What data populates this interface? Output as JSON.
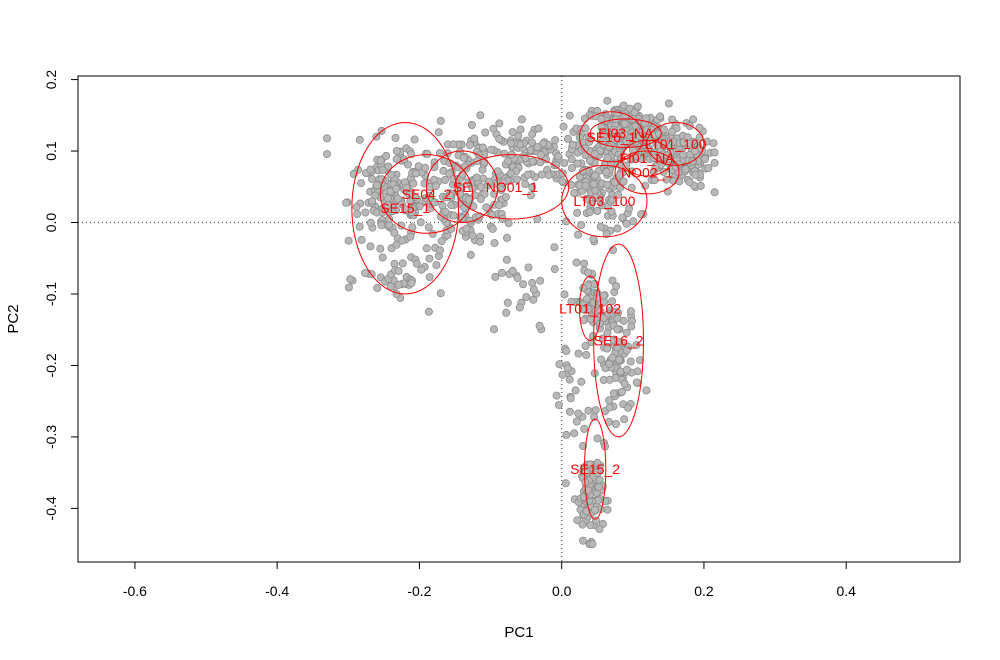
{
  "colors": {
    "point_fill": "#b8b8b8",
    "point_stroke": "#8c8c8c",
    "ellipse": "#ff0000",
    "label": "#ff0000",
    "frame": "#000000",
    "refline": "#555555"
  },
  "chart_data": {
    "type": "scatter",
    "title": "",
    "xlabel": "PC1",
    "ylabel": "PC2",
    "xlim": [
      -0.68,
      0.56
    ],
    "ylim": [
      -0.475,
      0.205
    ],
    "xticks": [
      -0.6,
      -0.4,
      -0.2,
      0.0,
      0.2,
      0.4
    ],
    "xtick_labels": [
      "-0.6",
      "-0.4",
      "-0.2",
      "0.0",
      "0.2",
      "0.4"
    ],
    "yticks": [
      -0.4,
      -0.3,
      -0.2,
      -0.1,
      0.0,
      0.1,
      0.2
    ],
    "ytick_labels": [
      "-0.4",
      "-0.3",
      "-0.2",
      "-0.1",
      "0.0",
      "0.1",
      "0.2"
    ],
    "grid": false,
    "reference_lines": {
      "x": 0,
      "y": 0,
      "style": "dotted"
    },
    "point_clusters": [
      {
        "cx": -0.05,
        "cy": 0.09,
        "sx": 0.17,
        "sy": 0.04,
        "n": 260
      },
      {
        "cx": -0.24,
        "cy": 0.03,
        "sx": 0.05,
        "sy": 0.05,
        "n": 140
      },
      {
        "cx": -0.13,
        "cy": 0.02,
        "sx": 0.06,
        "sy": 0.045,
        "n": 120
      },
      {
        "cx": 0.09,
        "cy": 0.13,
        "sx": 0.05,
        "sy": 0.03,
        "n": 210
      },
      {
        "cx": 0.16,
        "cy": 0.09,
        "sx": 0.04,
        "sy": 0.035,
        "n": 150
      },
      {
        "cx": 0.06,
        "cy": 0.04,
        "sx": 0.04,
        "sy": 0.05,
        "n": 90
      },
      {
        "cx": 0.04,
        "cy": -0.11,
        "sx": 0.02,
        "sy": 0.04,
        "n": 60
      },
      {
        "cx": 0.08,
        "cy": -0.19,
        "sx": 0.025,
        "sy": 0.07,
        "n": 110
      },
      {
        "cx": 0.04,
        "cy": -0.38,
        "sx": 0.015,
        "sy": 0.05,
        "n": 110
      },
      {
        "cx": -0.22,
        "cy": -0.08,
        "sx": 0.05,
        "sy": 0.03,
        "n": 40
      },
      {
        "cx": -0.06,
        "cy": -0.1,
        "sx": 0.05,
        "sy": 0.06,
        "n": 25
      },
      {
        "cx": 0.01,
        "cy": -0.25,
        "sx": 0.02,
        "sy": 0.09,
        "n": 25
      }
    ],
    "groups": [
      {
        "name": "FI03_NA",
        "cx": 0.09,
        "cy": 0.125,
        "rx": 0.05,
        "ry": 0.02
      },
      {
        "name": "SE16_1",
        "cx": 0.07,
        "cy": 0.12,
        "rx": 0.045,
        "ry": 0.035
      },
      {
        "name": "LT01_100",
        "cx": 0.16,
        "cy": 0.11,
        "rx": 0.04,
        "ry": 0.03
      },
      {
        "name": "FI01_NA",
        "cx": 0.12,
        "cy": 0.09,
        "rx": 0.035,
        "ry": 0.025
      },
      {
        "name": "NO02_1",
        "cx": 0.12,
        "cy": 0.07,
        "rx": 0.045,
        "ry": 0.03
      },
      {
        "name": "LT03_100",
        "cx": 0.06,
        "cy": 0.03,
        "rx": 0.06,
        "ry": 0.05
      },
      {
        "name": "NO01_1",
        "cx": -0.07,
        "cy": 0.05,
        "rx": 0.08,
        "ry": 0.045
      },
      {
        "name": "SE",
        "cx": -0.14,
        "cy": 0.05,
        "rx": 0.05,
        "ry": 0.05
      },
      {
        "name": "SE04_2",
        "cx": -0.19,
        "cy": 0.04,
        "rx": 0.065,
        "ry": 0.055
      },
      {
        "name": "SE15_1",
        "cx": -0.22,
        "cy": 0.02,
        "rx": 0.075,
        "ry": 0.12
      },
      {
        "name": "LT01_102",
        "cx": 0.04,
        "cy": -0.12,
        "rx": 0.015,
        "ry": 0.045
      },
      {
        "name": "SE16_2",
        "cx": 0.08,
        "cy": -0.165,
        "rx": 0.035,
        "ry": 0.135
      },
      {
        "name": "SE15_2",
        "cx": 0.047,
        "cy": -0.345,
        "rx": 0.015,
        "ry": 0.07
      }
    ]
  }
}
